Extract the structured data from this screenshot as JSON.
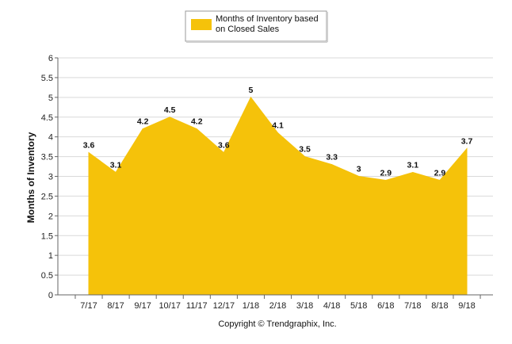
{
  "chart_data": {
    "type": "area",
    "categories": [
      "7/17",
      "8/17",
      "9/17",
      "10/17",
      "11/17",
      "12/17",
      "1/18",
      "2/18",
      "3/18",
      "4/18",
      "5/18",
      "6/18",
      "7/18",
      "8/18",
      "9/18"
    ],
    "series": [
      {
        "name": "Months of Inventory based on Closed Sales",
        "values": [
          3.6,
          3.1,
          4.2,
          4.5,
          4.2,
          3.6,
          5,
          4.1,
          3.5,
          3.3,
          3,
          2.9,
          3.1,
          2.9,
          3.7
        ],
        "color": "#F5C20A"
      }
    ],
    "legend_lines": [
      "Months of Inventory based",
      "on Closed Sales"
    ],
    "ylabel": "Months of Inventory",
    "xlabel": "",
    "ylim": [
      0,
      6
    ],
    "yticks": [
      "0",
      "0.5",
      "1",
      "1.5",
      "2",
      "2.5",
      "3",
      "3.5",
      "4",
      "4.5",
      "5",
      "5.5",
      "6"
    ],
    "grid": true,
    "legend_position": "top-center",
    "footer": "Copyright © Trendgraphix, Inc."
  }
}
